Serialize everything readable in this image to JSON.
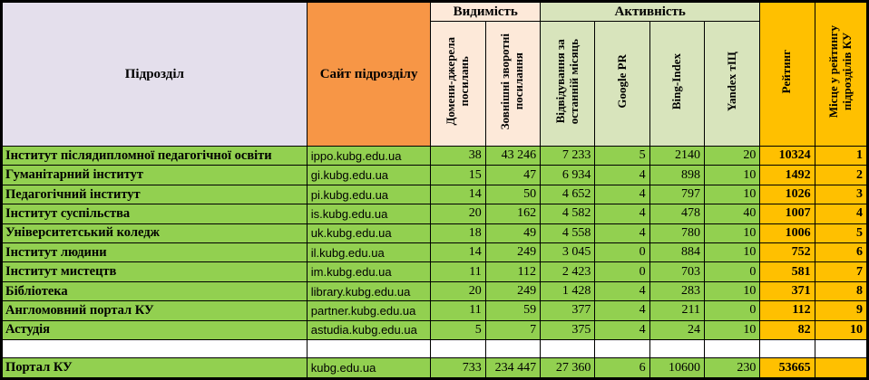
{
  "table": {
    "headers": {
      "subdivision": "Підрозділ",
      "site": "Сайт підрозділу",
      "group_visibility": "Видимість",
      "group_activity": "Активність",
      "domains": "Домени-джерела\nпосилань",
      "backlinks": "Зовнішні зворотні\nпосилання",
      "visits": "Відвідування за\nостанній місяць",
      "google_pr": "Google PR",
      "bing_index": "Bing-Index",
      "yandex_tic": "Yandex тІЦ",
      "rating": "Рейтинг",
      "place": "Місце у рейтингу\nпідрозділів КУ"
    },
    "rows": [
      {
        "name": "Інститут післядипломної педагогічної освіти",
        "site": "ippo.kubg.edu.ua",
        "domains": "38",
        "backlinks": "43 246",
        "visits": "7 233",
        "google_pr": "5",
        "bing_index": "2140",
        "yandex_tic": "20",
        "rating": "10324",
        "place": "1"
      },
      {
        "name": "Гуманітарний інститут",
        "site": "gi.kubg.edu.ua",
        "domains": "15",
        "backlinks": "47",
        "visits": "6 934",
        "google_pr": "4",
        "bing_index": "898",
        "yandex_tic": "10",
        "rating": "1492",
        "place": "2"
      },
      {
        "name": "Педагогічний інститут",
        "site": "pi.kubg.edu.ua",
        "domains": "14",
        "backlinks": "50",
        "visits": "4 652",
        "google_pr": "4",
        "bing_index": "797",
        "yandex_tic": "10",
        "rating": "1026",
        "place": "3"
      },
      {
        "name": "Інститут суспільства",
        "site": "is.kubg.edu.ua",
        "domains": "20",
        "backlinks": "162",
        "visits": "4 582",
        "google_pr": "4",
        "bing_index": "478",
        "yandex_tic": "40",
        "rating": "1007",
        "place": "4"
      },
      {
        "name": "Університетський коледж",
        "site": "uk.kubg.edu.ua",
        "domains": "18",
        "backlinks": "49",
        "visits": "4 558",
        "google_pr": "4",
        "bing_index": "780",
        "yandex_tic": "10",
        "rating": "1006",
        "place": "5"
      },
      {
        "name": "Інститут людини",
        "site": "il.kubg.edu.ua",
        "domains": "14",
        "backlinks": "249",
        "visits": "3 045",
        "google_pr": "0",
        "bing_index": "884",
        "yandex_tic": "10",
        "rating": "752",
        "place": "6"
      },
      {
        "name": "Інститут мистецтв",
        "site": "im.kubg.edu.ua",
        "domains": "11",
        "backlinks": "112",
        "visits": "2 423",
        "google_pr": "0",
        "bing_index": "703",
        "yandex_tic": "0",
        "rating": "581",
        "place": "7"
      },
      {
        "name": "Бібліотека",
        "site": "library.kubg.edu.ua",
        "domains": "20",
        "backlinks": "249",
        "visits": "1 428",
        "google_pr": "4",
        "bing_index": "283",
        "yandex_tic": "10",
        "rating": "371",
        "place": "8"
      },
      {
        "name": "Англомовний портал КУ",
        "site": "partner.kubg.edu.ua",
        "domains": "11",
        "backlinks": "59",
        "visits": "377",
        "google_pr": "4",
        "bing_index": "211",
        "yandex_tic": "0",
        "rating": "112",
        "place": "9"
      },
      {
        "name": "Астудія",
        "site": "astudia.kubg.edu.ua",
        "domains": "5",
        "backlinks": "7",
        "visits": "375",
        "google_pr": "4",
        "bing_index": "24",
        "yandex_tic": "10",
        "rating": "82",
        "place": "10"
      }
    ],
    "footer": {
      "name": "Портал КУ",
      "site": "kubg.edu.ua",
      "domains": "733",
      "backlinks": "234 447",
      "visits": "27 360",
      "google_pr": "6",
      "bing_index": "10600",
      "yandex_tic": "230",
      "rating": "53665",
      "place": ""
    }
  },
  "colors": {
    "row_green": "#92D050",
    "gold": "#FFC000",
    "orange_header": "#F79646",
    "lavender_header": "#E4DFEC",
    "visibility_peach": "#FDE9D9",
    "activity_green": "#D8E4BC",
    "border": "#000000"
  }
}
